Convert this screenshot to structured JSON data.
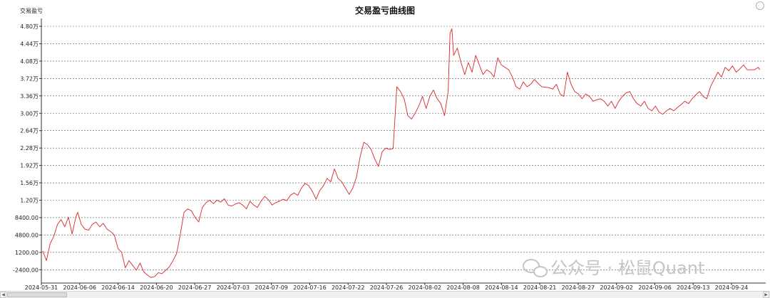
{
  "chart_data": {
    "type": "line",
    "title": "交易盈亏曲线图",
    "ylabel": "交易盈亏",
    "xlabel": "",
    "grid": true,
    "ylim": [
      -4400,
      48000
    ],
    "y_ticks": [
      "4.80万",
      "4.44万",
      "4.08万",
      "3.72万",
      "3.36万",
      "3.00万",
      "2.64万",
      "2.28万",
      "1.92万",
      "1.56万",
      "1.20万",
      "8400.00",
      "4800.00",
      "1200.00",
      "-2400.00"
    ],
    "x_ticks": [
      "2024-05-31",
      "2024-06-06",
      "2024-06-14",
      "2024-06-20",
      "2024-06-27",
      "2024-07-03",
      "2024-07-09",
      "2024-07-16",
      "2024-07-22",
      "2024-07-26",
      "2024-08-02",
      "2024-08-08",
      "2024-08-14",
      "2024-08-21",
      "2024-08-27",
      "2024-09-02",
      "2024-09-06",
      "2024-09-13",
      "2024-09-24"
    ],
    "series": [
      {
        "color": "#d9252b",
        "values": [
          [
            0,
            1500
          ],
          [
            2,
            -500
          ],
          [
            4,
            3000
          ],
          [
            6,
            4500
          ],
          [
            8,
            7000
          ],
          [
            10,
            8000
          ],
          [
            12,
            6500
          ],
          [
            14,
            8500
          ],
          [
            16,
            5000
          ],
          [
            18,
            8500
          ],
          [
            19,
            9500
          ],
          [
            21,
            7000
          ],
          [
            23,
            6000
          ],
          [
            25,
            5800
          ],
          [
            27,
            7000
          ],
          [
            29,
            7500
          ],
          [
            31,
            6500
          ],
          [
            33,
            7200
          ],
          [
            35,
            6000
          ],
          [
            37,
            5500
          ],
          [
            39,
            4800
          ],
          [
            41,
            2000
          ],
          [
            43,
            1200
          ],
          [
            45,
            -2000
          ],
          [
            47,
            -500
          ],
          [
            49,
            -1500
          ],
          [
            51,
            -2500
          ],
          [
            53,
            -1000
          ],
          [
            55,
            -2800
          ],
          [
            57,
            -3500
          ],
          [
            59,
            -4000
          ],
          [
            61,
            -3800
          ],
          [
            63,
            -3000
          ],
          [
            65,
            -3200
          ],
          [
            67,
            -2500
          ],
          [
            69,
            -1800
          ],
          [
            71,
            -500
          ],
          [
            73,
            1000
          ],
          [
            75,
            5000
          ],
          [
            77,
            9500
          ],
          [
            79,
            10200
          ],
          [
            81,
            9800
          ],
          [
            83,
            8500
          ],
          [
            85,
            7500
          ],
          [
            87,
            10500
          ],
          [
            89,
            11500
          ],
          [
            91,
            12000
          ],
          [
            93,
            11300
          ],
          [
            95,
            12000
          ],
          [
            97,
            11600
          ],
          [
            99,
            12300
          ],
          [
            101,
            11000
          ],
          [
            103,
            10800
          ],
          [
            105,
            11200
          ],
          [
            107,
            11500
          ],
          [
            109,
            11000
          ],
          [
            111,
            10200
          ],
          [
            113,
            11800
          ],
          [
            115,
            11000
          ],
          [
            117,
            10500
          ],
          [
            119,
            11800
          ],
          [
            121,
            12800
          ],
          [
            123,
            12100
          ],
          [
            125,
            11000
          ],
          [
            127,
            11500
          ],
          [
            129,
            11800
          ],
          [
            131,
            12200
          ],
          [
            133,
            11900
          ],
          [
            135,
            13000
          ],
          [
            137,
            13500
          ],
          [
            139,
            13000
          ],
          [
            141,
            14500
          ],
          [
            143,
            15500
          ],
          [
            145,
            15000
          ],
          [
            147,
            13800
          ],
          [
            149,
            12200
          ],
          [
            151,
            14000
          ],
          [
            153,
            15000
          ],
          [
            155,
            16500
          ],
          [
            157,
            15800
          ],
          [
            159,
            18500
          ],
          [
            161,
            16500
          ],
          [
            163,
            15800
          ],
          [
            165,
            14500
          ],
          [
            167,
            13200
          ],
          [
            169,
            14500
          ],
          [
            171,
            16800
          ],
          [
            173,
            21000
          ],
          [
            175,
            24000
          ],
          [
            177,
            23500
          ],
          [
            179,
            22500
          ],
          [
            181,
            20500
          ],
          [
            183,
            19000
          ],
          [
            185,
            22000
          ],
          [
            187,
            22800
          ],
          [
            189,
            22500
          ],
          [
            191,
            22700
          ],
          [
            193,
            35500
          ],
          [
            195,
            34500
          ],
          [
            197,
            33000
          ],
          [
            199,
            29500
          ],
          [
            201,
            28800
          ],
          [
            203,
            30000
          ],
          [
            205,
            31500
          ],
          [
            207,
            33500
          ],
          [
            209,
            31000
          ],
          [
            211,
            33500
          ],
          [
            213,
            34800
          ],
          [
            215,
            33000
          ],
          [
            217,
            32000
          ],
          [
            219,
            29500
          ],
          [
            221,
            34500
          ],
          [
            222,
            46500
          ],
          [
            223,
            47500
          ],
          [
            224,
            42000
          ],
          [
            226,
            43500
          ],
          [
            228,
            40500
          ],
          [
            230,
            38000
          ],
          [
            232,
            40500
          ],
          [
            234,
            38500
          ],
          [
            236,
            42000
          ],
          [
            238,
            40000
          ],
          [
            240,
            38000
          ],
          [
            242,
            39000
          ],
          [
            244,
            38500
          ],
          [
            246,
            37500
          ],
          [
            248,
            41500
          ],
          [
            250,
            40000
          ],
          [
            252,
            39500
          ],
          [
            254,
            39000
          ],
          [
            256,
            37500
          ],
          [
            258,
            35500
          ],
          [
            260,
            35000
          ],
          [
            262,
            36500
          ],
          [
            264,
            35500
          ],
          [
            266,
            36000
          ],
          [
            268,
            37000
          ],
          [
            270,
            36200
          ],
          [
            272,
            35500
          ],
          [
            274,
            35400
          ],
          [
            276,
            35300
          ],
          [
            278,
            35000
          ],
          [
            280,
            36000
          ],
          [
            282,
            34000
          ],
          [
            284,
            33500
          ],
          [
            286,
            38500
          ],
          [
            288,
            36000
          ],
          [
            290,
            34500
          ],
          [
            292,
            34000
          ],
          [
            294,
            33000
          ],
          [
            296,
            34000
          ],
          [
            298,
            33500
          ],
          [
            300,
            32500
          ],
          [
            302,
            32800
          ],
          [
            304,
            33000
          ],
          [
            306,
            32500
          ],
          [
            308,
            31500
          ],
          [
            310,
            32500
          ],
          [
            312,
            31000
          ],
          [
            314,
            32500
          ],
          [
            316,
            33500
          ],
          [
            318,
            34200
          ],
          [
            320,
            34500
          ],
          [
            322,
            33000
          ],
          [
            324,
            32000
          ],
          [
            326,
            31500
          ],
          [
            328,
            32500
          ],
          [
            330,
            31000
          ],
          [
            332,
            30500
          ],
          [
            334,
            31500
          ],
          [
            336,
            30200
          ],
          [
            338,
            29800
          ],
          [
            340,
            30500
          ],
          [
            342,
            31000
          ],
          [
            344,
            30500
          ],
          [
            346,
            31200
          ],
          [
            348,
            31800
          ],
          [
            350,
            32500
          ],
          [
            352,
            32000
          ],
          [
            354,
            33000
          ],
          [
            356,
            33800
          ],
          [
            358,
            34500
          ],
          [
            360,
            33500
          ],
          [
            362,
            33000
          ],
          [
            364,
            35500
          ],
          [
            366,
            37000
          ],
          [
            368,
            38500
          ],
          [
            370,
            37500
          ],
          [
            372,
            39500
          ],
          [
            374,
            38800
          ],
          [
            376,
            39800
          ],
          [
            378,
            38500
          ],
          [
            380,
            39200
          ],
          [
            382,
            40000
          ],
          [
            384,
            39000
          ],
          [
            386,
            39000
          ],
          [
            388,
            39000
          ],
          [
            390,
            39500
          ],
          [
            391,
            39000
          ]
        ]
      }
    ]
  },
  "watermark": "公众号 · 松鼠Quant",
  "colors": {
    "line": "#d9252b",
    "grid": "#555555",
    "axis": "#333333"
  }
}
